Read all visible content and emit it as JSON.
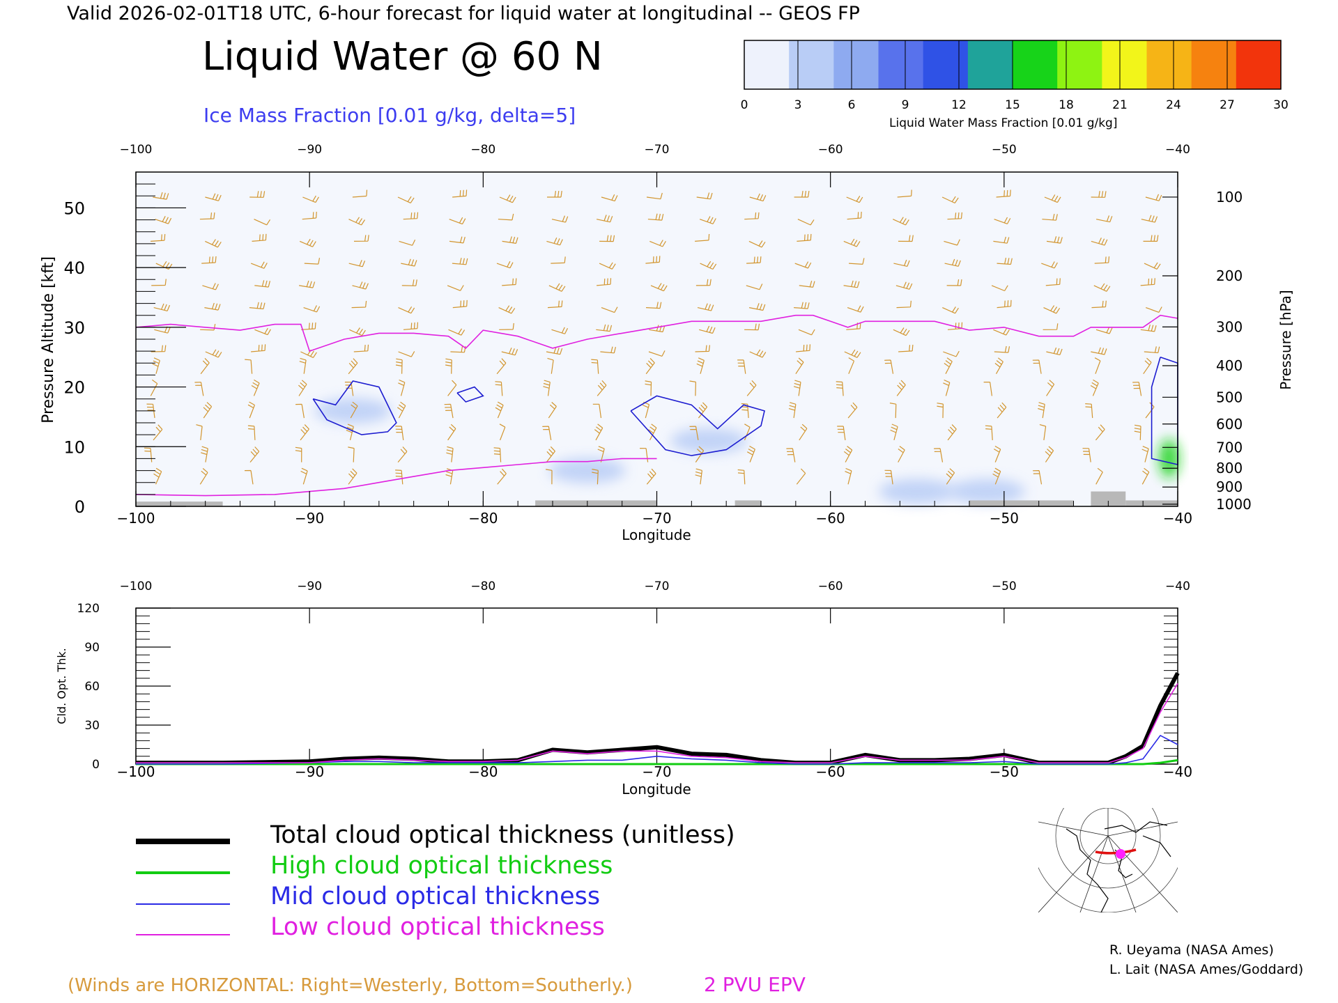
{
  "header": {
    "valid_line": "Valid 2026-02-01T18 UTC, 6-hour forecast for liquid water at longitudinal -- GEOS FP",
    "title": "Liquid Water @ 60 N",
    "subtitle": "Ice Mass Fraction [0.01 g/kg, delta=5]"
  },
  "colorbar": {
    "label": "Liquid Water Mass Fraction [0.01 g/kg]",
    "ticks": [
      "0",
      "3",
      "6",
      "9",
      "12",
      "15",
      "18",
      "21",
      "24",
      "27",
      "30"
    ],
    "colors": [
      "#eef2fc",
      "#b9cdf6",
      "#8eaaf0",
      "#5872ec",
      "#2f52e6",
      "#1fa39a",
      "#17d319",
      "#8ef312",
      "#f2f51a",
      "#f6b416",
      "#f6820f",
      "#f2340c"
    ]
  },
  "legend": {
    "total": "Total cloud optical thickness (unitless)",
    "high": "High cloud optical thickness",
    "mid": "Mid cloud optical thickness",
    "low": "Low cloud optical thickness",
    "colors": {
      "total": "#000000",
      "high": "#12cc12",
      "mid": "#2a2ae6",
      "low": "#e020e0"
    }
  },
  "footer": {
    "winds_note": "(Winds are HORIZONTAL: Right=Westerly, Bottom=Southerly.)",
    "pvu_label": "2 PVU EPV",
    "credit1": "R. Ueyama (NASA Ames)",
    "credit2": "L. Lait (NASA Ames/Goddard)"
  },
  "chart_data": [
    {
      "type": "heatmap",
      "title": "Liquid Water @ 60 N",
      "xlabel": "Longitude",
      "ylabel": "Pressure Altitude [kft]",
      "ylabel_right": "Pressure [hPa]",
      "xlim": [
        -100,
        -40
      ],
      "ylim": [
        0,
        56
      ],
      "xticks": [
        "-100",
        "-90",
        "-80",
        "-70",
        "-60",
        "-50",
        "-40"
      ],
      "yticks": [
        "0",
        "10",
        "20",
        "30",
        "40",
        "50"
      ],
      "pressure_ticks": [
        "100",
        "200",
        "300",
        "400",
        "500",
        "600",
        "700",
        "800",
        "900",
        "1000"
      ],
      "pvu_2_line_upper": {
        "lon": [
          -100,
          -98,
          -96,
          -94,
          -92,
          -90.5,
          -90,
          -88,
          -86,
          -84,
          -82,
          -81,
          -80,
          -78,
          -76,
          -74,
          -72,
          -70,
          -68,
          -66,
          -64,
          -62,
          -61,
          -60,
          -59,
          -58,
          -56,
          -54,
          -52,
          -50,
          -48,
          -46,
          -45,
          -44,
          -42,
          -41,
          -40
        ],
        "kft": [
          30,
          30.5,
          30,
          29.5,
          30.5,
          30.5,
          26,
          28,
          29,
          29,
          28.5,
          26.5,
          29.5,
          28.5,
          26.5,
          28,
          29,
          30,
          31,
          31,
          31,
          32,
          32,
          31,
          30,
          31,
          31,
          31,
          29.5,
          30,
          28.5,
          28.5,
          30,
          30,
          30,
          32,
          31.5
        ]
      },
      "pvu_2_line_lower": {
        "lon": [
          -100,
          -96,
          -92,
          -90,
          -88,
          -86,
          -84,
          -82,
          -80,
          -78,
          -76,
          -74,
          -72,
          -70
        ],
        "kft": [
          2,
          1.8,
          2,
          2.5,
          3,
          4,
          5,
          6,
          6.5,
          7,
          7.5,
          7.5,
          8,
          8
        ]
      },
      "ice_contours": [
        {
          "lon": [
            -89.8,
            -88.5,
            -87.5,
            -86,
            -85,
            -85.5,
            -87,
            -89,
            -89.8
          ],
          "kft": [
            18,
            17,
            21,
            20,
            14,
            12.5,
            12,
            14.5,
            18
          ]
        },
        {
          "lon": [
            -81.5,
            -80.5,
            -80,
            -81,
            -81.5
          ],
          "kft": [
            19,
            20,
            18.5,
            17.5,
            19
          ]
        },
        {
          "lon": [
            -71.5,
            -70,
            -68,
            -66.5,
            -65,
            -63.8,
            -64,
            -66,
            -68,
            -69.5,
            -71.5
          ],
          "kft": [
            16,
            18.5,
            17,
            13,
            17,
            16,
            13.5,
            9.5,
            8.5,
            9.5,
            16
          ]
        },
        {
          "lon": [
            -41,
            -40,
            -40,
            -41.5,
            -41.5,
            -41
          ],
          "kft": [
            25,
            24,
            7,
            8,
            20,
            25
          ]
        }
      ],
      "liquid_shading": [
        {
          "lon": -87.5,
          "kft": 16,
          "value": 3
        },
        {
          "lon": -74,
          "kft": 6,
          "value": 4
        },
        {
          "lon": -67,
          "kft": 11,
          "value": 3
        },
        {
          "lon": -55,
          "kft": 2.5,
          "value": 3
        },
        {
          "lon": -51,
          "kft": 2.5,
          "value": 4
        },
        {
          "lon": -40.5,
          "kft": 8,
          "value": 15
        }
      ],
      "wind_barbs": "present"
    },
    {
      "type": "line",
      "xlabel": "Longitude",
      "ylabel": "Cld. Opt. Thk.",
      "xlim": [
        -100,
        -40
      ],
      "ylim": [
        0,
        120
      ],
      "xticks": [
        "-100",
        "-90",
        "-80",
        "-70",
        "-60",
        "-50",
        "-40"
      ],
      "yticks": [
        "0",
        "30",
        "60",
        "90",
        "120"
      ],
      "x": [
        -100,
        -95,
        -90,
        -88,
        -86,
        -84,
        -82,
        -80,
        -78,
        -76,
        -74,
        -72,
        -70,
        -68,
        -66,
        -64,
        -62,
        -60,
        -58,
        -56,
        -54,
        -52,
        -50,
        -48,
        -46,
        -44,
        -43,
        -42,
        -41,
        -40
      ],
      "series": [
        {
          "name": "Total cloud optical thickness (unitless)",
          "values": [
            1,
            1,
            2,
            4,
            5,
            4,
            2,
            2,
            3,
            11,
            9,
            11,
            13,
            8,
            7,
            3,
            1,
            1,
            7,
            3,
            3,
            4,
            7,
            1,
            1,
            1,
            6,
            14,
            45,
            70
          ]
        },
        {
          "name": "High cloud optical thickness",
          "values": [
            0,
            0,
            0,
            0,
            0,
            0,
            0,
            0,
            0,
            0,
            0,
            0,
            0,
            0,
            0,
            0,
            0,
            0,
            0,
            0,
            0,
            0,
            0,
            0,
            0,
            0,
            0,
            0,
            1,
            3
          ]
        },
        {
          "name": "Mid cloud optical thickness",
          "values": [
            0,
            0,
            1,
            2,
            2,
            1,
            1,
            1,
            1,
            2,
            3,
            3,
            6,
            4,
            3,
            1,
            0,
            0,
            1,
            1,
            1,
            1,
            2,
            0,
            0,
            0,
            1,
            4,
            22,
            15
          ]
        },
        {
          "name": "Low cloud optical thickness",
          "values": [
            1,
            1,
            1,
            3,
            4,
            3,
            2,
            2,
            3,
            10,
            8,
            10,
            10,
            6,
            5,
            2,
            1,
            1,
            6,
            3,
            3,
            3,
            6,
            1,
            1,
            1,
            5,
            12,
            40,
            62
          ]
        }
      ]
    }
  ]
}
